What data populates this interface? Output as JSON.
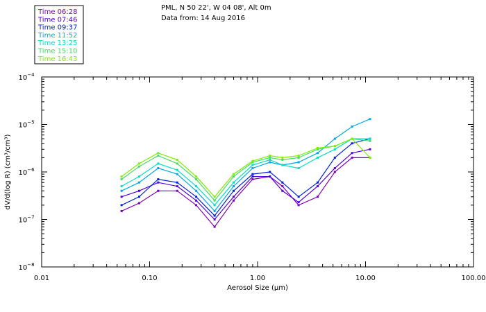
{
  "chart_data": {
    "type": "line",
    "title_lines": [
      "PML, N 50 22', W 04 08', Alt 0m",
      "Data from: 14 Aug 2016"
    ],
    "xlabel": "Aerosol Size (μm)",
    "ylabel": "dV/d(log R)  (cm³/cm³)",
    "xscale": "log",
    "yscale": "log",
    "xlim": [
      0.01,
      100
    ],
    "ylim": [
      1e-08,
      0.0001
    ],
    "x_ticks": [
      {
        "value": 0.01,
        "label": "0.01"
      },
      {
        "value": 0.1,
        "label": "0.10"
      },
      {
        "value": 1,
        "label": "1.00"
      },
      {
        "value": 10,
        "label": "10.00"
      },
      {
        "value": 100,
        "label": "100.00"
      }
    ],
    "y_ticks": [
      {
        "value": 1e-08,
        "mantissa": "10",
        "exp": "−8"
      },
      {
        "value": 1e-07,
        "mantissa": "10",
        "exp": "−7"
      },
      {
        "value": 1e-06,
        "mantissa": "10",
        "exp": "−6"
      },
      {
        "value": 1e-05,
        "mantissa": "10",
        "exp": "−5"
      },
      {
        "value": 0.0001,
        "mantissa": "10",
        "exp": "−4"
      }
    ],
    "x": [
      0.055,
      0.08,
      0.12,
      0.18,
      0.27,
      0.4,
      0.6,
      0.9,
      1.3,
      1.7,
      2.4,
      3.6,
      5.2,
      7.5,
      11.0
    ],
    "series": [
      {
        "name": "Time 06:28",
        "color": "#7f00c0",
        "values": [
          1.5e-07,
          2.2e-07,
          4e-07,
          4e-07,
          2e-07,
          7e-08,
          2.5e-07,
          7e-07,
          8e-07,
          5e-07,
          2e-07,
          3e-07,
          1e-06,
          2e-06,
          2e-06
        ]
      },
      {
        "name": "Time 07:46",
        "color": "#4f00e0",
        "values": [
          3e-07,
          4e-07,
          6e-07,
          5e-07,
          2.5e-07,
          1e-07,
          3e-07,
          8e-07,
          8e-07,
          4e-07,
          2.3e-07,
          5e-07,
          1.2e-06,
          2.5e-06,
          3e-06
        ]
      },
      {
        "name": "Time 09:37",
        "color": "#0020e0",
        "values": [
          2e-07,
          3e-07,
          7e-07,
          6e-07,
          3e-07,
          1.2e-07,
          4e-07,
          9e-07,
          1e-06,
          6e-07,
          3e-07,
          6e-07,
          2e-06,
          4e-06,
          5e-06
        ]
      },
      {
        "name": "Time 11:52",
        "color": "#00a8e8",
        "values": [
          4e-07,
          6e-07,
          1.2e-06,
          9e-07,
          4e-07,
          1.5e-07,
          5e-07,
          1.2e-06,
          1.6e-06,
          1.4e-06,
          1.6e-06,
          2.5e-06,
          5e-06,
          9e-06,
          1.3e-05
        ]
      },
      {
        "name": "Time 13:25",
        "color": "#00e0c0",
        "values": [
          5e-07,
          8e-07,
          1.5e-06,
          1.1e-06,
          5e-07,
          2e-07,
          6e-07,
          1.4e-06,
          1.8e-06,
          1.4e-06,
          1.2e-06,
          2e-06,
          3e-06,
          5e-06,
          5e-06
        ]
      },
      {
        "name": "Time 15:10",
        "color": "#40e060",
        "values": [
          7e-07,
          1.3e-06,
          2.2e-06,
          1.5e-06,
          7e-07,
          2.5e-07,
          8e-07,
          1.6e-06,
          2e-06,
          1.8e-06,
          2e-06,
          3e-06,
          3.5e-06,
          5e-06,
          4.5e-06
        ]
      },
      {
        "name": "Time 16:43",
        "color": "#80f000",
        "values": [
          8e-07,
          1.5e-06,
          2.5e-06,
          1.8e-06,
          8e-07,
          3e-07,
          9e-07,
          1.7e-06,
          2.2e-06,
          2e-06,
          2.2e-06,
          3.2e-06,
          3.5e-06,
          5e-06,
          2e-06
        ]
      }
    ]
  }
}
